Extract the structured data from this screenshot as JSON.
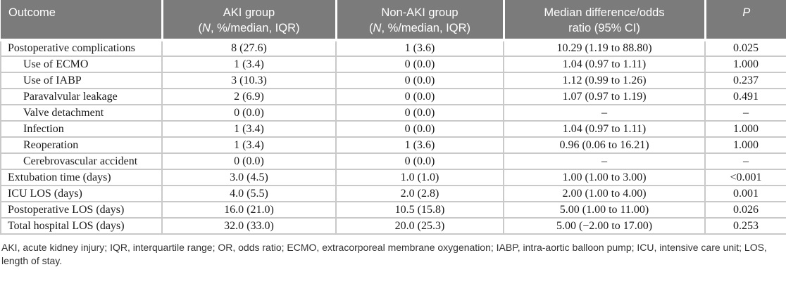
{
  "colors": {
    "header_bg": "#7b7b7b",
    "header_text": "#ffffff",
    "grid_line": "#c9c9c9",
    "body_text": "#1b1b1b",
    "footnote_text": "#333333",
    "page_bg": "#ffffff"
  },
  "table": {
    "header": {
      "outcome": "Outcome",
      "aki": {
        "line1": "AKI group",
        "open": "(",
        "n": "N",
        "rest": ", %/median, IQR)"
      },
      "non_aki": {
        "line1": "Non-AKI group",
        "open": "(",
        "n": "N",
        "rest": ", %/median, IQR)"
      },
      "diff": {
        "line1": "Median difference/odds",
        "line2": "ratio (95% CI)"
      },
      "p": "P"
    },
    "rows": [
      {
        "outcome": "Postoperative complications",
        "indent": false,
        "aki": "8 (27.6)",
        "non_aki": "1 (3.6)",
        "diff": "10.29 (1.19 to 88.80)",
        "p": "0.025"
      },
      {
        "outcome": "Use of ECMO",
        "indent": true,
        "aki": "1 (3.4)",
        "non_aki": "0 (0.0)",
        "diff": "1.04 (0.97 to 1.11)",
        "p": "1.000"
      },
      {
        "outcome": "Use of IABP",
        "indent": true,
        "aki": "3 (10.3)",
        "non_aki": "0 (0.0)",
        "diff": "1.12 (0.99 to 1.26)",
        "p": "0.237"
      },
      {
        "outcome": "Paravalvular leakage",
        "indent": true,
        "aki": "2 (6.9)",
        "non_aki": "0 (0.0)",
        "diff": "1.07 (0.97 to 1.19)",
        "p": "0.491"
      },
      {
        "outcome": "Valve detachment",
        "indent": true,
        "aki": "0 (0.0)",
        "non_aki": "0 (0.0)",
        "diff": "–",
        "p": "–"
      },
      {
        "outcome": "Infection",
        "indent": true,
        "aki": "1 (3.4)",
        "non_aki": "0 (0.0)",
        "diff": "1.04 (0.97 to 1.11)",
        "p": "1.000"
      },
      {
        "outcome": "Reoperation",
        "indent": true,
        "aki": "1 (3.4)",
        "non_aki": "1 (3.6)",
        "diff": "0.96 (0.06 to 16.21)",
        "p": "1.000"
      },
      {
        "outcome": "Cerebrovascular accident",
        "indent": true,
        "aki": "0 (0.0)",
        "non_aki": "0 (0.0)",
        "diff": "–",
        "p": "–"
      },
      {
        "outcome": "Extubation time (days)",
        "indent": false,
        "aki": "3.0 (4.5)",
        "non_aki": "1.0 (1.0)",
        "diff": "1.00 (1.00 to 3.00)",
        "p": "<0.001"
      },
      {
        "outcome": "ICU LOS (days)",
        "indent": false,
        "aki": "4.0 (5.5)",
        "non_aki": "2.0 (2.8)",
        "diff": "2.00 (1.00 to 4.00)",
        "p": "0.001"
      },
      {
        "outcome": "Postoperative LOS (days)",
        "indent": false,
        "aki": "16.0 (21.0)",
        "non_aki": "10.5 (15.8)",
        "diff": "5.00 (1.00 to 11.00)",
        "p": "0.026"
      },
      {
        "outcome": "Total hospital LOS (days)",
        "indent": false,
        "aki": "32.0 (33.0)",
        "non_aki": "20.0 (25.3)",
        "diff": "5.00 (−2.00 to 17.00)",
        "p": "0.253"
      }
    ],
    "footnote": "AKI, acute kidney injury; IQR, interquartile range; OR, odds ratio; ECMO, extracorporeal membrane oxygenation; IABP, intra-aortic balloon pump; ICU, intensive care unit; LOS, length of stay."
  }
}
